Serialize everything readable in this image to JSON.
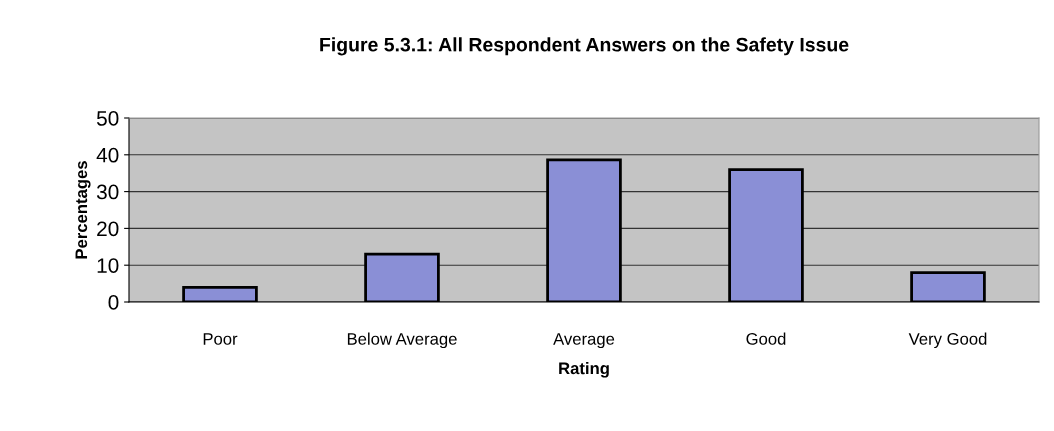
{
  "chart_data": {
    "type": "bar",
    "title": "Figure 5.3.1: All Respondent Answers on the Safety Issue",
    "xlabel": "Rating",
    "ylabel": "Percentages",
    "categories": [
      "Poor",
      "Below Average",
      "Average",
      "Good",
      "Very Good"
    ],
    "values": [
      4,
      13,
      38.6,
      36,
      8
    ],
    "color": "#8a8fd6",
    "ylim": [
      0,
      50
    ],
    "yticks": [
      0,
      10,
      20,
      30,
      40,
      50
    ],
    "grid": "y",
    "legend": false
  }
}
